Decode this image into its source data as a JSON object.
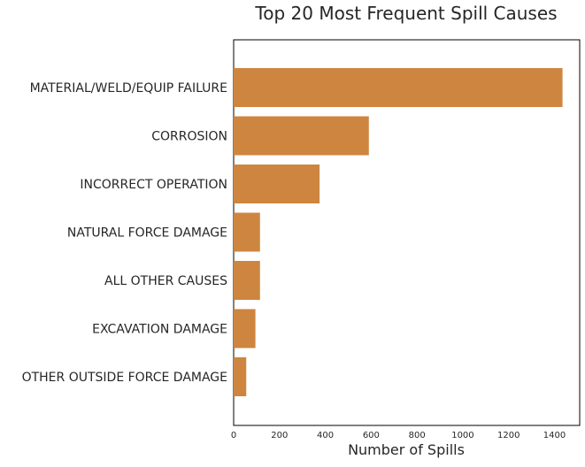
{
  "chart_data": {
    "type": "bar",
    "orientation": "horizontal",
    "title": "Top 20 Most Frequent Spill Causes",
    "xlabel": "Number of Spills",
    "ylabel": "",
    "categories": [
      "MATERIAL/WELD/EQUIP FAILURE",
      "CORROSION",
      "INCORRECT OPERATION",
      "NATURAL FORCE DAMAGE",
      "ALL OTHER CAUSES",
      "EXCAVATION DAMAGE",
      "OTHER OUTSIDE FORCE DAMAGE"
    ],
    "values": [
      1435,
      590,
      375,
      115,
      115,
      95,
      55
    ],
    "xlim": [
      0,
      1510
    ],
    "xticks": [
      0,
      200,
      400,
      600,
      800,
      1000,
      1200,
      1400
    ],
    "bar_color": "#cd853f",
    "grid": false,
    "legend": "none"
  }
}
